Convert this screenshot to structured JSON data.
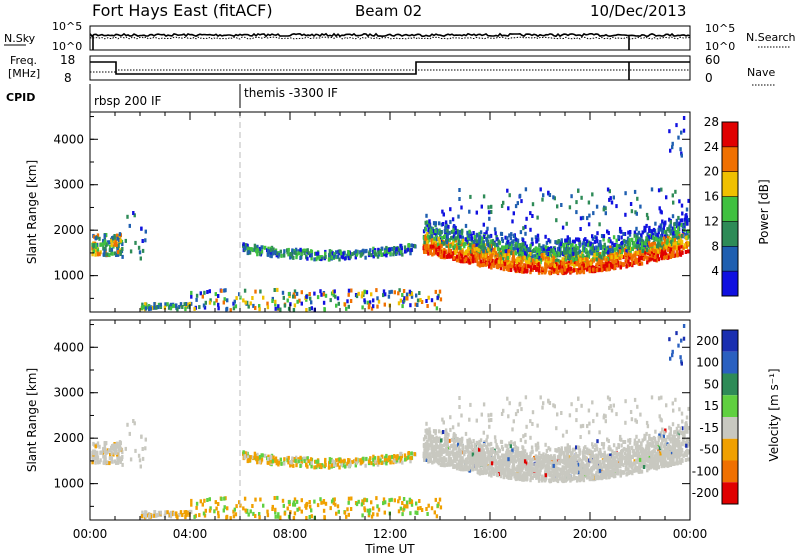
{
  "header": {
    "title": "Fort Hays East (fitACF)",
    "beam": "Beam 02",
    "date": "10/Dec/2013"
  },
  "top_panels": {
    "nsky_label": "N.Sky",
    "nsky_ticks": [
      "10^5",
      "10^0"
    ],
    "nsearch_label": "N.Search",
    "nsearch_ticks": [
      "10^5",
      "10^0"
    ],
    "freq_label_1": "Freq.",
    "freq_label_2": "[MHz]",
    "freq_ticks": [
      "18",
      "8"
    ],
    "nave_label": "Nave",
    "nave_ticks": [
      "60",
      "0"
    ],
    "cpid_label": "CPID",
    "cpid_segments": [
      {
        "label": "rbsp 200 IF",
        "start_hour": 0
      },
      {
        "label": "themis -3300 IF",
        "start_hour": 6
      }
    ]
  },
  "chart_data": [
    {
      "type": "heatmap",
      "name": "power",
      "ylabel": "Slant Range [km]",
      "yticks": [
        "1000",
        "2000",
        "3000",
        "4000"
      ],
      "ylim": [
        200,
        4600
      ],
      "colorbar_label": "Power [dB]",
      "colorbar_ticks": [
        "4",
        "8",
        "12",
        "16",
        "20",
        "24",
        "28"
      ],
      "colors": [
        "#1010e0",
        "#1f5fb0",
        "#2e8b57",
        "#40c040",
        "#f0c000",
        "#f07000",
        "#e00000"
      ]
    },
    {
      "type": "heatmap",
      "name": "velocity",
      "ylabel": "Slant Range [km]",
      "yticks": [
        "1000",
        "2000",
        "3000",
        "4000"
      ],
      "ylim": [
        200,
        4600
      ],
      "colorbar_label": "Velocity [m s⁻¹]",
      "colorbar_ticks": [
        "200",
        "100",
        "50",
        "15",
        "-15",
        "-50",
        "-100",
        "-200"
      ],
      "colors": [
        "#1a2fb0",
        "#2a60c0",
        "#2e8b57",
        "#60d040",
        "#c8c8c0",
        "#f0a000",
        "#f07000",
        "#e00000"
      ],
      "xlabel": "Time UT",
      "xticks": [
        "00:00",
        "04:00",
        "08:00",
        "12:00",
        "16:00",
        "20:00",
        "00:00"
      ]
    }
  ]
}
